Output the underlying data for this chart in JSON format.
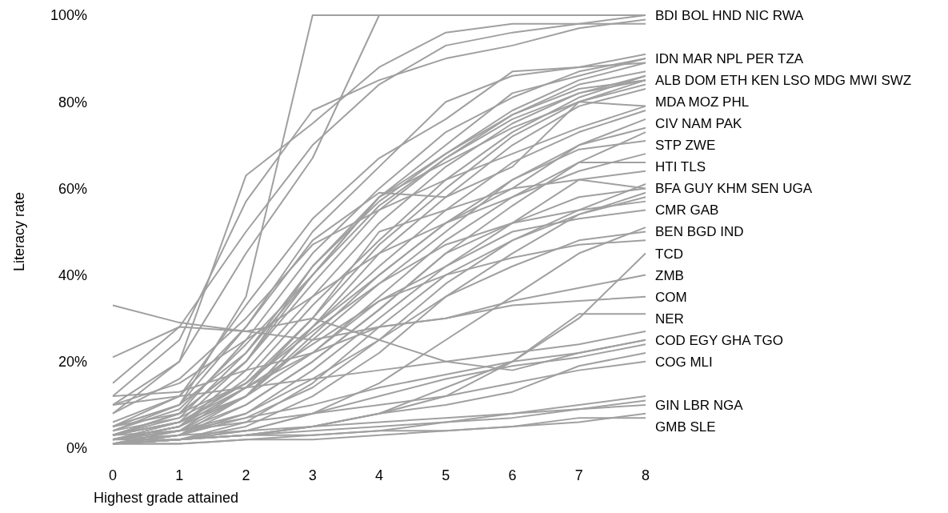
{
  "chart_data": {
    "type": "line",
    "xlabel": "Highest grade attained",
    "ylabel": "Literacy rate",
    "x": [
      0,
      1,
      2,
      3,
      4,
      5,
      6,
      7,
      8
    ],
    "xlim": [
      0,
      8
    ],
    "xticks": [
      0,
      1,
      2,
      3,
      4,
      5,
      6,
      7,
      8
    ],
    "ylim": [
      0,
      100
    ],
    "yticks": [
      {
        "value": 0,
        "label": "0%"
      },
      {
        "value": 20,
        "label": "20%"
      },
      {
        "value": 40,
        "label": "40%"
      },
      {
        "value": 60,
        "label": "60%"
      },
      {
        "value": 80,
        "label": "80%"
      },
      {
        "value": 100,
        "label": "100%"
      }
    ],
    "grid": false,
    "marker": "none",
    "line_style": "solid",
    "series": [
      {
        "color": "#a0a0a0",
        "values": [
          5,
          10,
          35,
          100,
          100,
          100,
          100,
          100,
          100
        ]
      },
      {
        "color": "#a0a0a0",
        "values": [
          8,
          20,
          45,
          67,
          100,
          100,
          100,
          100,
          100
        ]
      },
      {
        "color": "#a0a0a0",
        "values": [
          12,
          25,
          57,
          78,
          85,
          90,
          93,
          97,
          99
        ]
      },
      {
        "color": "#a0a0a0",
        "values": [
          10,
          20,
          63,
          75,
          88,
          96,
          98,
          98,
          98
        ]
      },
      {
        "color": "#a0a0a0",
        "values": [
          15,
          28,
          50,
          70,
          84,
          93,
          96,
          98,
          100
        ]
      },
      {
        "color": "#a0a0a0",
        "values": [
          5,
          10,
          28,
          50,
          65,
          80,
          86,
          88,
          91
        ]
      },
      {
        "color": "#a0a0a0",
        "values": [
          3,
          8,
          25,
          45,
          60,
          73,
          81,
          87,
          90
        ]
      },
      {
        "color": "#a0a0a0",
        "values": [
          6,
          12,
          33,
          53,
          67,
          76,
          87,
          88,
          89
        ]
      },
      {
        "color": "#a0a0a0",
        "values": [
          4,
          10,
          22,
          40,
          58,
          70,
          82,
          86,
          90
        ]
      },
      {
        "color": "#a0a0a0",
        "values": [
          2,
          6,
          20,
          42,
          57,
          68,
          78,
          85,
          89
        ]
      },
      {
        "color": "#a0a0a0",
        "values": [
          3,
          8,
          20,
          38,
          55,
          67,
          76,
          82,
          86
        ]
      },
      {
        "color": "#a0a0a0",
        "values": [
          2,
          5,
          18,
          35,
          52,
          65,
          75,
          82,
          85
        ]
      },
      {
        "color": "#a0a0a0",
        "values": [
          4,
          9,
          24,
          40,
          56,
          67,
          77,
          83,
          85
        ]
      },
      {
        "color": "#a0a0a0",
        "values": [
          1,
          4,
          14,
          30,
          47,
          60,
          72,
          80,
          84
        ]
      },
      {
        "color": "#a0a0a0",
        "values": [
          3,
          7,
          22,
          42,
          58,
          68,
          77,
          84,
          87
        ]
      },
      {
        "color": "#a0a0a0",
        "values": [
          2,
          5,
          16,
          33,
          48,
          62,
          73,
          81,
          86
        ]
      },
      {
        "color": "#a0a0a0",
        "values": [
          1,
          3,
          12,
          28,
          45,
          58,
          70,
          79,
          83
        ]
      },
      {
        "color": "#a0a0a0",
        "values": [
          5,
          12,
          28,
          48,
          59,
          58,
          65,
          80,
          85
        ]
      },
      {
        "color": "#a0a0a0",
        "values": [
          3,
          8,
          20,
          40,
          58,
          66,
          74,
          80,
          79
        ]
      },
      {
        "color": "#a0a0a0",
        "values": [
          2,
          5,
          12,
          28,
          42,
          55,
          66,
          73,
          78
        ]
      },
      {
        "color": "#a0a0a0",
        "values": [
          8,
          16,
          30,
          47,
          55,
          62,
          68,
          74,
          79
        ]
      },
      {
        "color": "#a0a0a0",
        "values": [
          2,
          5,
          12,
          25,
          38,
          50,
          62,
          70,
          76
        ]
      },
      {
        "color": "#a0a0a0",
        "values": [
          1,
          3,
          10,
          20,
          32,
          45,
          56,
          66,
          73
        ]
      },
      {
        "color": "#a0a0a0",
        "values": [
          3,
          6,
          15,
          28,
          40,
          52,
          60,
          70,
          74
        ]
      },
      {
        "color": "#a0a0a0",
        "values": [
          1,
          4,
          12,
          26,
          40,
          52,
          62,
          69,
          71
        ]
      },
      {
        "color": "#a0a0a0",
        "values": [
          2,
          5,
          14,
          22,
          35,
          48,
          58,
          64,
          68
        ]
      },
      {
        "color": "#a0a0a0",
        "values": [
          10,
          15,
          25,
          35,
          45,
          52,
          58,
          66,
          66
        ]
      },
      {
        "color": "#a0a0a0",
        "values": [
          1,
          3,
          8,
          18,
          30,
          42,
          52,
          62,
          64
        ]
      },
      {
        "color": "#a0a0a0",
        "values": [
          1,
          2,
          6,
          15,
          28,
          40,
          48,
          55,
          61
        ]
      },
      {
        "color": "#a0a0a0",
        "values": [
          2,
          4,
          10,
          20,
          32,
          45,
          52,
          58,
          60
        ]
      },
      {
        "color": "#a0a0a0",
        "values": [
          1,
          2,
          5,
          12,
          22,
          35,
          45,
          54,
          59
        ]
      },
      {
        "color": "#a0a0a0",
        "values": [
          5,
          8,
          15,
          30,
          50,
          55,
          60,
          62,
          60
        ]
      },
      {
        "color": "#a0a0a0",
        "values": [
          1,
          3,
          7,
          14,
          25,
          38,
          48,
          54,
          58
        ]
      },
      {
        "color": "#a0a0a0",
        "values": [
          4,
          7,
          15,
          27,
          38,
          47,
          52,
          55,
          57
        ]
      },
      {
        "color": "#a0a0a0",
        "values": [
          3,
          6,
          12,
          22,
          34,
          42,
          50,
          53,
          55
        ]
      },
      {
        "color": "#a0a0a0",
        "values": [
          1,
          2,
          4,
          8,
          15,
          25,
          35,
          45,
          51
        ]
      },
      {
        "color": "#a0a0a0",
        "values": [
          2,
          4,
          8,
          16,
          25,
          35,
          42,
          48,
          50
        ]
      },
      {
        "color": "#a0a0a0",
        "values": [
          3,
          6,
          14,
          24,
          34,
          40,
          44,
          47,
          48
        ]
      },
      {
        "color": "#a0a0a0",
        "values": [
          1,
          2,
          3,
          5,
          8,
          14,
          20,
          30,
          45
        ]
      },
      {
        "color": "#a0a0a0",
        "values": [
          12,
          13,
          18,
          22,
          28,
          30,
          34,
          37,
          40
        ]
      },
      {
        "color": "#a0a0a0",
        "values": [
          33,
          29,
          27,
          25,
          28,
          30,
          33,
          34,
          35
        ]
      },
      {
        "color": "#a0a0a0",
        "values": [
          1,
          2,
          3,
          5,
          8,
          12,
          20,
          31,
          31
        ]
      },
      {
        "color": "#a0a0a0",
        "values": [
          10,
          12,
          14,
          16,
          18,
          20,
          22,
          24,
          27
        ]
      },
      {
        "color": "#a0a0a0",
        "values": [
          2,
          4,
          7,
          10,
          14,
          17,
          20,
          22,
          25
        ]
      },
      {
        "color": "#a0a0a0",
        "values": [
          1,
          2,
          4,
          8,
          12,
          16,
          19,
          21,
          24
        ]
      },
      {
        "color": "#a0a0a0",
        "values": [
          21,
          28,
          27,
          30,
          25,
          20,
          18,
          22,
          25
        ]
      },
      {
        "color": "#a0a0a0",
        "values": [
          1,
          2,
          3,
          5,
          8,
          10,
          13,
          19,
          22
        ]
      },
      {
        "color": "#a0a0a0",
        "values": [
          3,
          4,
          6,
          8,
          10,
          12,
          15,
          18,
          20
        ]
      },
      {
        "color": "#a0a0a0",
        "values": [
          1,
          1,
          2,
          3,
          4,
          6,
          8,
          10,
          12
        ]
      },
      {
        "color": "#a0a0a0",
        "values": [
          2,
          3,
          4,
          5,
          6,
          7,
          8,
          9,
          10
        ]
      },
      {
        "color": "#a0a0a0",
        "values": [
          1,
          2,
          3,
          4,
          5,
          6,
          7,
          9,
          11
        ]
      },
      {
        "color": "#a0a0a0",
        "values": [
          1,
          1,
          2,
          2,
          3,
          4,
          5,
          6,
          8
        ]
      },
      {
        "color": "#a0a0a0",
        "values": [
          2,
          2,
          3,
          3,
          4,
          4,
          5,
          7,
          7
        ]
      }
    ],
    "annotations": [
      "BDI BOL HND NIC RWA",
      "IDN MAR NPL PER TZA",
      "ALB DOM ETH KEN LSO MDG MWI SWZ",
      "MDA MOZ PHL",
      "CIV NAM PAK",
      "STP ZWE",
      "HTI TLS",
      "BFA GUY KHM SEN UGA",
      "CMR GAB",
      "BEN BGD IND",
      "TCD",
      "ZMB",
      "COM",
      "NER",
      "COD EGY GHA TGO",
      "COG MLI",
      "GIN LBR NGA",
      "GMB SLE"
    ]
  }
}
